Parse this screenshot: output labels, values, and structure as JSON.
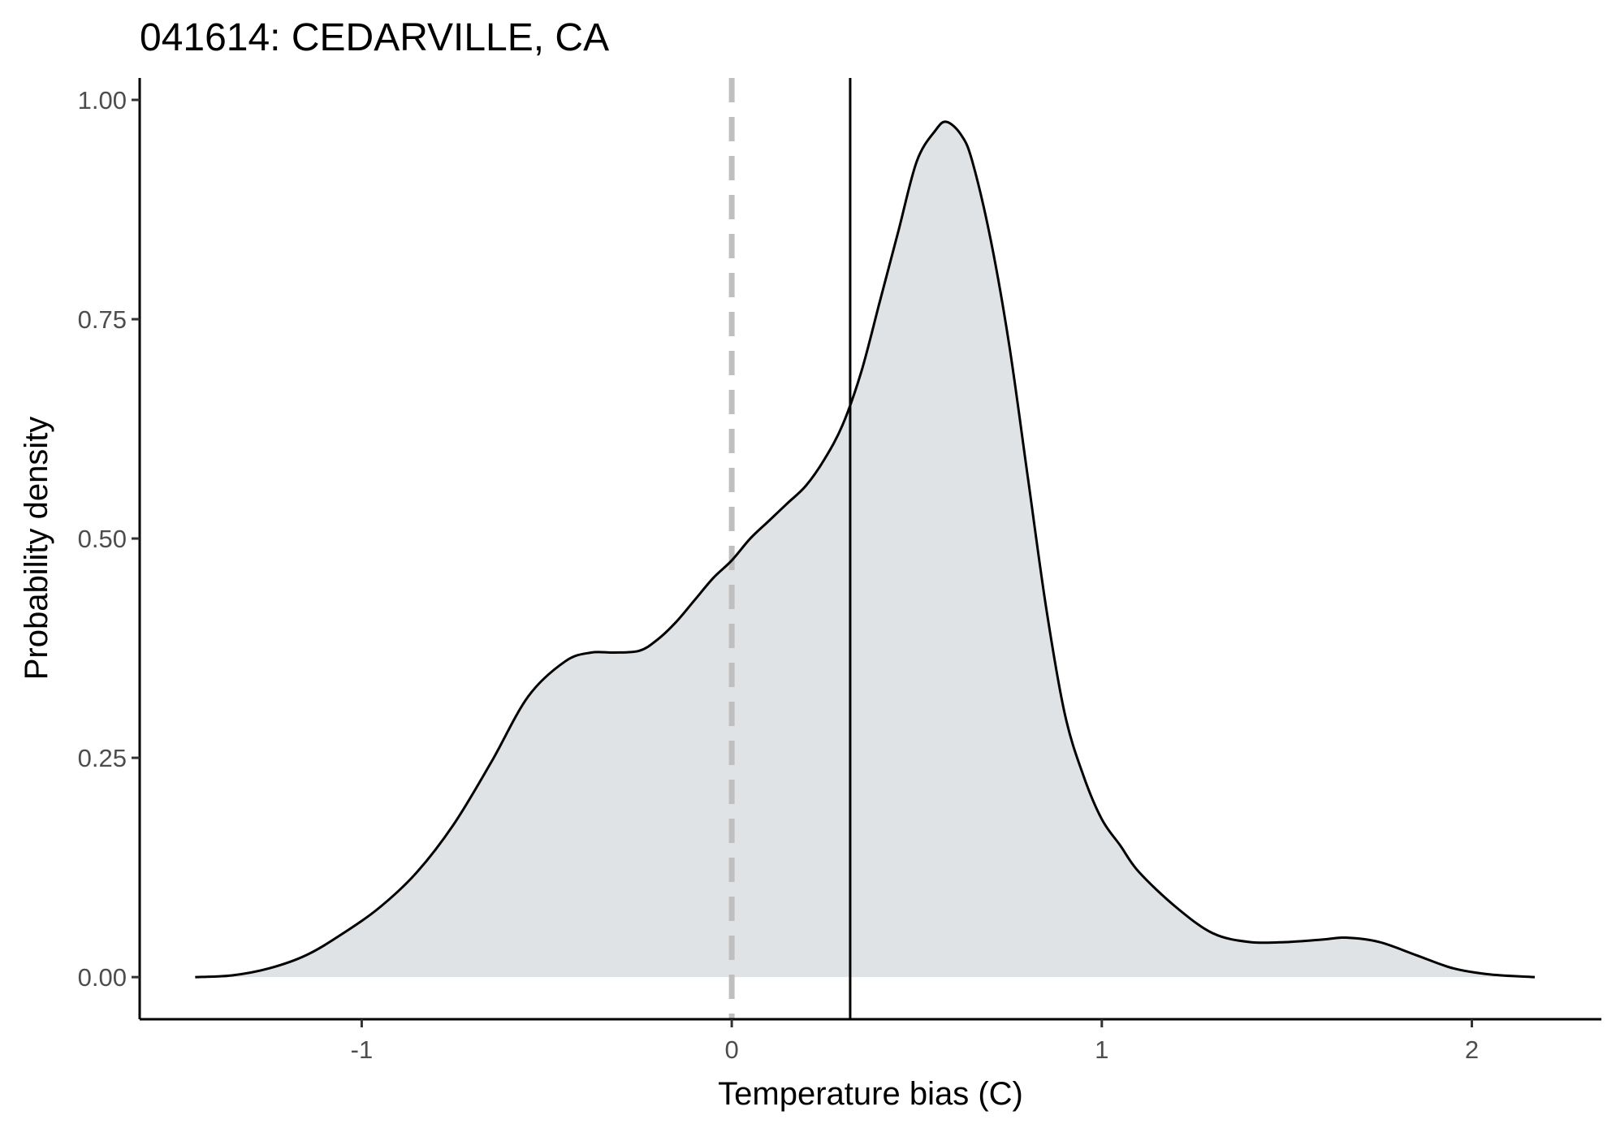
{
  "chart_data": {
    "type": "area",
    "title": "041614: CEDARVILLE, CA",
    "xlabel": "Temperature bias (C)",
    "ylabel": "Probability density",
    "xlim": [
      -1.6,
      2.35
    ],
    "ylim": [
      -0.048,
      1.025
    ],
    "xticks": [
      -1,
      0,
      1,
      2
    ],
    "xtick_labels": [
      "-1",
      "0",
      "1",
      "2"
    ],
    "yticks": [
      0,
      0.25,
      0.5,
      0.75,
      1.0
    ],
    "ytick_labels": [
      "0.00",
      "0.25",
      "0.50",
      "0.75",
      "1.00"
    ],
    "grid": false,
    "legend": "none",
    "fill_color": "#e0e3e5",
    "line_color": "#000000",
    "reference_lines": [
      {
        "x": 0,
        "style": "dashed",
        "color": "#bfbfbf"
      },
      {
        "x": 0.32,
        "style": "solid",
        "color": "#000000"
      }
    ],
    "series": [
      {
        "x": [
          -1.45,
          -1.35,
          -1.25,
          -1.15,
          -1.05,
          -0.95,
          -0.85,
          -0.75,
          -0.65,
          -0.55,
          -0.45,
          -0.38,
          -0.32,
          -0.25,
          -0.2,
          -0.15,
          -0.1,
          -0.05,
          0,
          0.05,
          0.1,
          0.15,
          0.2,
          0.25,
          0.3,
          0.35,
          0.4,
          0.45,
          0.5,
          0.55,
          0.58,
          0.62,
          0.65,
          0.7,
          0.75,
          0.8,
          0.85,
          0.9,
          0.95,
          1.0,
          1.05,
          1.1,
          1.2,
          1.3,
          1.4,
          1.5,
          1.6,
          1.66,
          1.75,
          1.85,
          1.95,
          2.05,
          2.17
        ],
        "y": [
          0.0,
          0.002,
          0.01,
          0.025,
          0.05,
          0.08,
          0.12,
          0.175,
          0.245,
          0.32,
          0.36,
          0.37,
          0.37,
          0.372,
          0.385,
          0.405,
          0.43,
          0.455,
          0.475,
          0.5,
          0.52,
          0.54,
          0.56,
          0.59,
          0.63,
          0.69,
          0.77,
          0.85,
          0.93,
          0.965,
          0.975,
          0.96,
          0.93,
          0.84,
          0.72,
          0.57,
          0.42,
          0.3,
          0.23,
          0.18,
          0.15,
          0.12,
          0.08,
          0.05,
          0.04,
          0.04,
          0.043,
          0.045,
          0.04,
          0.025,
          0.01,
          0.003,
          0.0
        ]
      }
    ]
  }
}
